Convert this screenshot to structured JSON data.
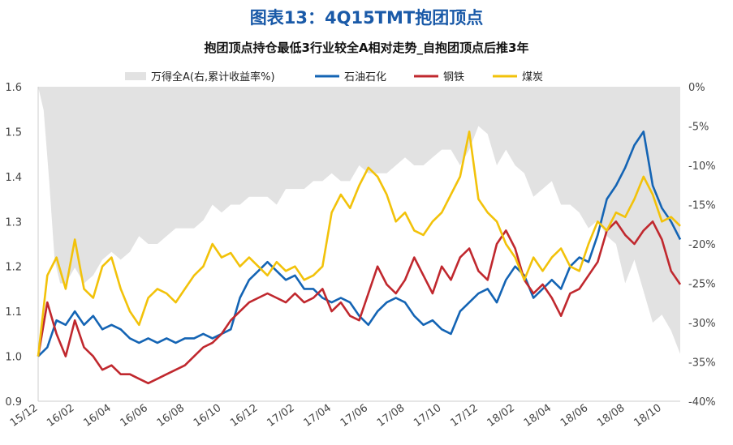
{
  "title": "图表13：4Q15TMT抱团顶点",
  "chart_data": {
    "type": "line",
    "title": "抱团顶点持仓最低3行业较全A相对走势_自抱团顶点后推3年",
    "x_tick_labels": [
      "15/12",
      "16/02",
      "16/04",
      "16/06",
      "16/08",
      "16/10",
      "16/12",
      "17/02",
      "17/04",
      "17/06",
      "17/08",
      "17/10",
      "17/12",
      "18/02",
      "18/04",
      "18/06",
      "18/08",
      "18/10"
    ],
    "x_range_months": [
      0,
      35
    ],
    "y_left": {
      "ticks": [
        "0.9",
        "1.0",
        "1.1",
        "1.2",
        "1.3",
        "1.4",
        "1.5",
        "1.6"
      ],
      "range": [
        0.9,
        1.6
      ]
    },
    "y_right": {
      "ticks": [
        "0%",
        "-5%",
        "-10%",
        "-15%",
        "-20%",
        "-25%",
        "-30%",
        "-35%",
        "-40%"
      ],
      "range": [
        -40,
        0
      ]
    },
    "legend_position": "top",
    "area": {
      "name": "万得全A(右,累计收益率%)",
      "color": "#e2e2e2",
      "x": [
        0,
        0.3,
        0.6,
        0.9,
        1.2,
        1.5,
        2,
        2.5,
        3,
        3.5,
        4,
        4.5,
        5,
        5.5,
        6,
        6.5,
        7,
        7.5,
        8,
        8.5,
        9,
        9.5,
        10,
        10.5,
        11,
        11.5,
        12,
        12.5,
        13,
        13.5,
        14,
        14.5,
        15,
        15.5,
        16,
        16.5,
        17,
        17.5,
        18,
        18.5,
        19,
        19.5,
        20,
        20.5,
        21,
        21.5,
        22,
        22.5,
        23,
        23.5,
        24,
        24.5,
        25,
        25.5,
        26,
        26.5,
        27,
        27.5,
        28,
        28.5,
        29,
        29.5,
        30,
        30.5,
        31,
        31.5,
        32,
        32.5,
        33,
        33.5,
        34,
        34.5,
        35
      ],
      "values": [
        0,
        -3,
        -12,
        -22,
        -25,
        -25,
        -23,
        -25,
        -24,
        -22,
        -21,
        -22,
        -21,
        -19,
        -20,
        -20,
        -19,
        -18,
        -18,
        -18,
        -17,
        -15,
        -16,
        -15,
        -15,
        -14,
        -14,
        -14,
        -15,
        -13,
        -13,
        -13,
        -12,
        -12,
        -11,
        -12,
        -12,
        -10,
        -11,
        -11,
        -11,
        -10,
        -9,
        -10,
        -10,
        -9,
        -8,
        -8,
        -10,
        -8,
        -5,
        -6,
        -10,
        -8,
        -10,
        -11,
        -14,
        -13,
        -12,
        -15,
        -15,
        -16,
        -18,
        -17,
        -19,
        -20,
        -25,
        -22,
        -26,
        -30,
        -29,
        -31,
        -34
      ]
    },
    "series": [
      {
        "name": "石油石化",
        "color": "#1464b4",
        "x": [
          0,
          0.5,
          1,
          1.5,
          2,
          2.5,
          3,
          3.5,
          4,
          4.5,
          5,
          5.5,
          6,
          6.5,
          7,
          7.5,
          8,
          8.5,
          9,
          9.5,
          10,
          10.5,
          11,
          11.5,
          12,
          12.5,
          13,
          13.5,
          14,
          14.5,
          15,
          15.5,
          16,
          16.5,
          17,
          17.5,
          18,
          18.5,
          19,
          19.5,
          20,
          20.5,
          21,
          21.5,
          22,
          22.5,
          23,
          23.5,
          24,
          24.5,
          25,
          25.5,
          26,
          26.5,
          27,
          27.5,
          28,
          28.5,
          29,
          29.5,
          30,
          30.5,
          31,
          31.5,
          32,
          32.5,
          33,
          33.5,
          34,
          34.5,
          35
        ],
        "values": [
          1.0,
          1.02,
          1.08,
          1.07,
          1.1,
          1.07,
          1.09,
          1.06,
          1.07,
          1.06,
          1.04,
          1.03,
          1.04,
          1.03,
          1.04,
          1.03,
          1.04,
          1.04,
          1.05,
          1.04,
          1.05,
          1.06,
          1.13,
          1.17,
          1.19,
          1.21,
          1.19,
          1.17,
          1.18,
          1.15,
          1.15,
          1.13,
          1.12,
          1.13,
          1.12,
          1.09,
          1.07,
          1.1,
          1.12,
          1.13,
          1.12,
          1.09,
          1.07,
          1.08,
          1.06,
          1.05,
          1.1,
          1.12,
          1.14,
          1.15,
          1.12,
          1.17,
          1.2,
          1.18,
          1.13,
          1.15,
          1.17,
          1.15,
          1.2,
          1.22,
          1.21,
          1.27,
          1.35,
          1.38,
          1.42,
          1.47,
          1.5,
          1.38,
          1.33,
          1.3,
          1.26
        ]
      },
      {
        "name": "钢铁",
        "color": "#c0282e",
        "x": [
          0,
          0.5,
          1,
          1.5,
          2,
          2.5,
          3,
          3.5,
          4,
          4.5,
          5,
          5.5,
          6,
          6.5,
          7,
          7.5,
          8,
          8.5,
          9,
          9.5,
          10,
          10.5,
          11,
          11.5,
          12,
          12.5,
          13,
          13.5,
          14,
          14.5,
          15,
          15.5,
          16,
          16.5,
          17,
          17.5,
          18,
          18.5,
          19,
          19.5,
          20,
          20.5,
          21,
          21.5,
          22,
          22.5,
          23,
          23.5,
          24,
          24.5,
          25,
          25.5,
          26,
          26.5,
          27,
          27.5,
          28,
          28.5,
          29,
          29.5,
          30,
          30.5,
          31,
          31.5,
          32,
          32.5,
          33,
          33.5,
          34,
          34.5,
          35
        ],
        "values": [
          1.0,
          1.12,
          1.05,
          1.0,
          1.08,
          1.02,
          1.0,
          0.97,
          0.98,
          0.96,
          0.96,
          0.95,
          0.94,
          0.95,
          0.96,
          0.97,
          0.98,
          1.0,
          1.02,
          1.03,
          1.05,
          1.08,
          1.1,
          1.12,
          1.13,
          1.14,
          1.13,
          1.12,
          1.14,
          1.12,
          1.13,
          1.15,
          1.1,
          1.12,
          1.09,
          1.08,
          1.14,
          1.2,
          1.16,
          1.14,
          1.17,
          1.22,
          1.18,
          1.14,
          1.2,
          1.17,
          1.22,
          1.24,
          1.19,
          1.17,
          1.25,
          1.28,
          1.24,
          1.17,
          1.14,
          1.16,
          1.13,
          1.09,
          1.14,
          1.15,
          1.18,
          1.21,
          1.28,
          1.3,
          1.27,
          1.25,
          1.28,
          1.3,
          1.26,
          1.19,
          1.16
        ]
      },
      {
        "name": "煤炭",
        "color": "#f2c20a",
        "x": [
          0,
          0.5,
          1,
          1.5,
          2,
          2.5,
          3,
          3.5,
          4,
          4.5,
          5,
          5.5,
          6,
          6.5,
          7,
          7.5,
          8,
          8.5,
          9,
          9.5,
          10,
          10.5,
          11,
          11.5,
          12,
          12.5,
          13,
          13.5,
          14,
          14.5,
          15,
          15.5,
          16,
          16.5,
          17,
          17.5,
          18,
          18.5,
          19,
          19.5,
          20,
          20.5,
          21,
          21.5,
          22,
          22.5,
          23,
          23.5,
          24,
          24.5,
          25,
          25.5,
          26,
          26.5,
          27,
          27.5,
          28,
          28.5,
          29,
          29.5,
          30,
          30.5,
          31,
          31.5,
          32,
          32.5,
          33,
          33.5,
          34,
          34.5,
          35
        ],
        "values": [
          1.0,
          1.18,
          1.22,
          1.15,
          1.26,
          1.15,
          1.13,
          1.2,
          1.22,
          1.15,
          1.1,
          1.07,
          1.13,
          1.15,
          1.14,
          1.12,
          1.15,
          1.18,
          1.2,
          1.25,
          1.22,
          1.23,
          1.2,
          1.22,
          1.2,
          1.18,
          1.21,
          1.19,
          1.2,
          1.17,
          1.18,
          1.2,
          1.32,
          1.36,
          1.33,
          1.38,
          1.42,
          1.4,
          1.36,
          1.3,
          1.32,
          1.28,
          1.27,
          1.3,
          1.32,
          1.36,
          1.4,
          1.5,
          1.35,
          1.32,
          1.3,
          1.25,
          1.22,
          1.17,
          1.22,
          1.19,
          1.22,
          1.24,
          1.2,
          1.19,
          1.25,
          1.3,
          1.28,
          1.32,
          1.31,
          1.35,
          1.4,
          1.36,
          1.3,
          1.31,
          1.29
        ]
      }
    ]
  }
}
